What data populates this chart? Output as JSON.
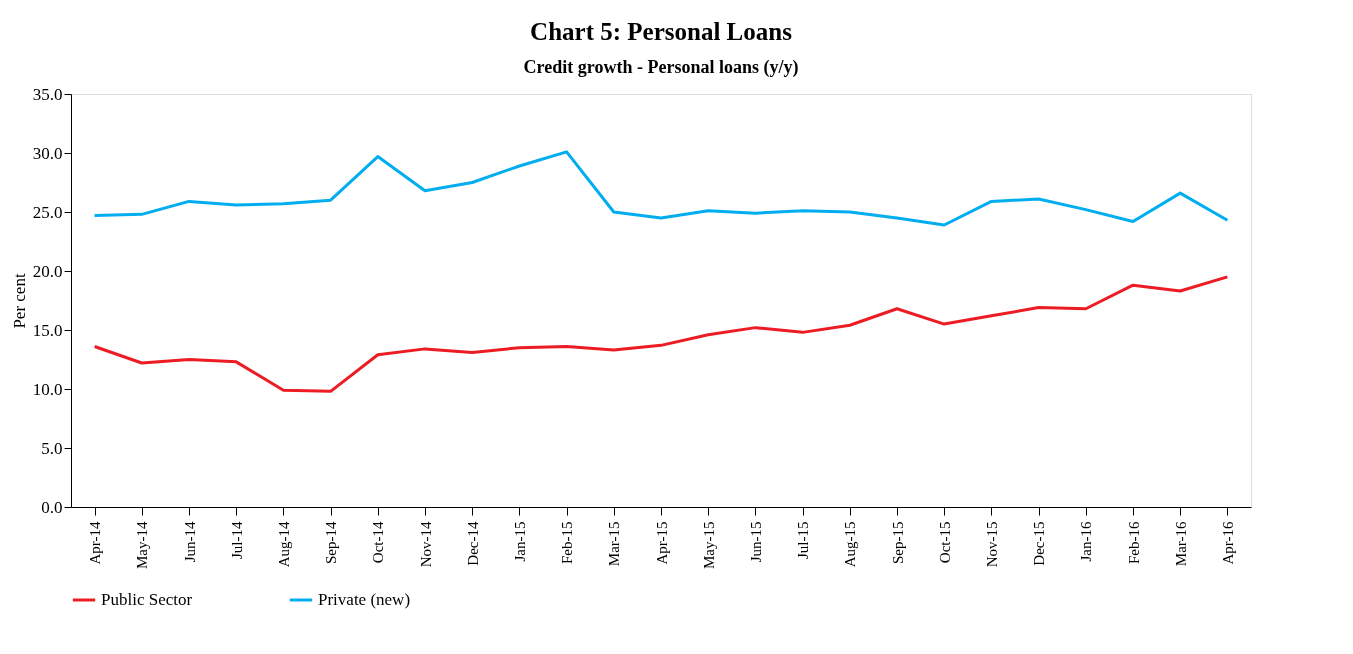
{
  "chart_data": {
    "type": "line",
    "title": "Chart 5: Personal Loans",
    "subtitle": "Credit growth - Personal loans (y/y)",
    "ylabel": "Per cent",
    "categories": [
      "Apr-14",
      "May-14",
      "Jun-14",
      "Jul-14",
      "Aug-14",
      "Sep-14",
      "Oct-14",
      "Nov-14",
      "Dec-14",
      "Jan-15",
      "Feb-15",
      "Mar-15",
      "Apr-15",
      "May-15",
      "Jun-15",
      "Jul-15",
      "Aug-15",
      "Sep-15",
      "Oct-15",
      "Nov-15",
      "Dec-15",
      "Jan-16",
      "Feb-16",
      "Mar-16",
      "Apr-16"
    ],
    "series": [
      {
        "name": "Public Sector",
        "color": "#ed1c24",
        "values": [
          13.6,
          12.2,
          12.5,
          12.3,
          9.9,
          9.8,
          12.9,
          13.4,
          13.1,
          13.5,
          13.6,
          13.3,
          13.7,
          14.6,
          15.2,
          14.8,
          15.4,
          16.8,
          15.5,
          16.2,
          16.9,
          16.8,
          18.8,
          18.3,
          19.5
        ]
      },
      {
        "name": "Private (new)",
        "color": "#00aeef",
        "values": [
          24.7,
          24.8,
          25.9,
          25.6,
          25.7,
          26.0,
          29.7,
          26.8,
          27.5,
          28.9,
          30.1,
          25.0,
          24.5,
          25.1,
          24.9,
          25.1,
          25.0,
          24.5,
          23.9,
          25.9,
          26.1,
          25.2,
          24.2,
          26.6,
          24.3
        ]
      }
    ],
    "ylim": [
      0,
      35
    ],
    "yticks": [
      {
        "value": 0,
        "label": "0.0"
      },
      {
        "value": 5,
        "label": "5.0"
      },
      {
        "value": 10,
        "label": "10.0"
      },
      {
        "value": 15,
        "label": "15.0"
      },
      {
        "value": 20,
        "label": "20.0"
      },
      {
        "value": 25,
        "label": "25.0"
      },
      {
        "value": 30,
        "label": "30.0"
      },
      {
        "value": 35,
        "label": "35.0"
      }
    ],
    "grid": false,
    "legend": "bottom",
    "line_style": "solid",
    "marker": "none"
  }
}
